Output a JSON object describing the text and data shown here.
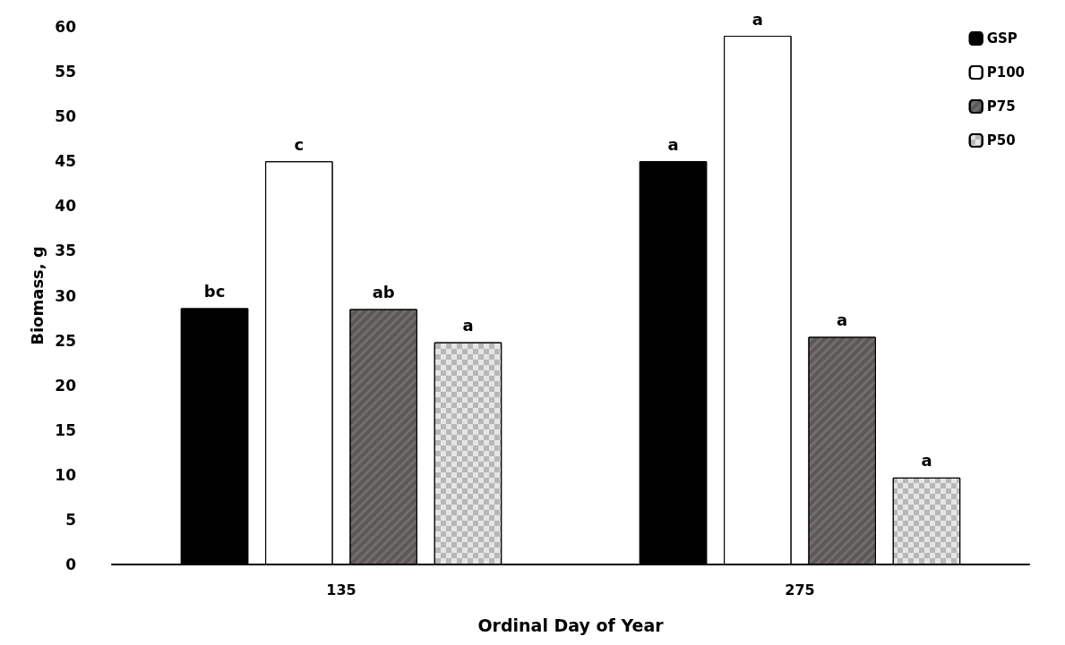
{
  "chart_data": {
    "type": "bar",
    "xlabel": "Ordinal Day of Year",
    "ylabel": "Biomass, g",
    "categories": [
      "135",
      "275"
    ],
    "series": [
      {
        "name": "GSP",
        "color": "#000000",
        "values": [
          28.6,
          45.0
        ],
        "value_labels": [
          "bc",
          "a"
        ]
      },
      {
        "name": "P100",
        "color": "#ffffff",
        "values": [
          45.0,
          59.0
        ],
        "value_labels": [
          "c",
          "a"
        ]
      },
      {
        "name": "P75",
        "color": "#736e6e",
        "values": [
          28.5,
          25.4
        ],
        "value_labels": [
          "ab",
          "a"
        ]
      },
      {
        "name": "P50",
        "color": "#e6e5e6",
        "values": [
          24.8,
          9.7
        ],
        "value_labels": [
          "a",
          "a"
        ]
      }
    ],
    "ylim": [
      0,
      60
    ],
    "yticks": [
      0,
      5,
      10,
      15,
      20,
      25,
      30,
      35,
      40,
      45,
      50,
      55,
      60
    ],
    "grid": false,
    "legend": "top right"
  }
}
